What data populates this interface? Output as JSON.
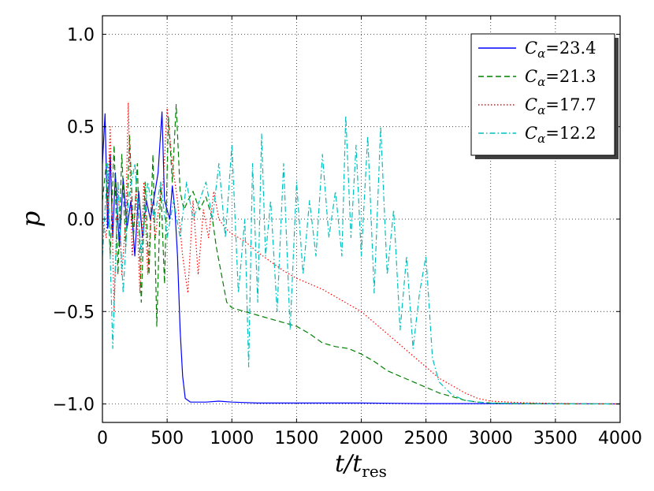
{
  "chart_data": {
    "type": "line",
    "title": "",
    "xlabel": "t/t_res",
    "xlabel_main": "t/t",
    "xlabel_sub": "res",
    "ylabel": "p",
    "xlim": [
      0,
      4000
    ],
    "ylim": [
      -1.1,
      1.1
    ],
    "xticks": [
      0,
      500,
      1000,
      1500,
      2000,
      2500,
      3000,
      3500,
      4000
    ],
    "yticks": [
      1.0,
      0.5,
      0.0,
      -0.5,
      -1.0
    ],
    "xtick_labels": [
      "0",
      "500",
      "1000",
      "1500",
      "2000",
      "2500",
      "3000",
      "3500",
      "4000"
    ],
    "ytick_labels": [
      "1.0",
      "0.5",
      "0.0",
      "−0.5",
      "−1.0"
    ],
    "grid": true,
    "legend_position": "top-right",
    "series": [
      {
        "name": "C_α = 23.4",
        "label_main": "C",
        "label_sub": "α",
        "label_value": "=23.4",
        "color": "#0000ff",
        "dash": "solid",
        "x": [
          0,
          20,
          40,
          60,
          80,
          100,
          130,
          160,
          190,
          220,
          250,
          280,
          310,
          340,
          370,
          400,
          430,
          460,
          480,
          500,
          520,
          540,
          560,
          580,
          600,
          620,
          640,
          660,
          680,
          700,
          750,
          800,
          900,
          1000,
          1200,
          1500,
          2000,
          2500,
          3000,
          3500,
          4000
        ],
        "values": [
          0.3,
          0.57,
          -0.05,
          0.35,
          -0.1,
          0.25,
          -0.15,
          0.22,
          -0.05,
          0.1,
          -0.2,
          0.15,
          -0.1,
          0.1,
          0.0,
          0.12,
          0.25,
          0.58,
          0.1,
          0.05,
          0.0,
          0.18,
          0.05,
          -0.2,
          -0.6,
          -0.85,
          -0.97,
          -0.98,
          -0.99,
          -0.99,
          -0.99,
          -0.99,
          -0.985,
          -0.99,
          -0.995,
          -0.995,
          -0.995,
          -0.998,
          -0.998,
          -0.999,
          -1.0
        ]
      },
      {
        "name": "C_α = 21.3",
        "label_main": "C",
        "label_sub": "α",
        "label_value": "=21.3",
        "color": "#008000",
        "dash": "dashed",
        "x": [
          0,
          30,
          60,
          90,
          120,
          150,
          180,
          210,
          240,
          270,
          300,
          330,
          360,
          390,
          420,
          450,
          480,
          510,
          540,
          570,
          600,
          630,
          660,
          700,
          750,
          800,
          850,
          880,
          920,
          960,
          1000,
          1100,
          1200,
          1300,
          1400,
          1500,
          1600,
          1700,
          1800,
          1900,
          2000,
          2100,
          2200,
          2300,
          2400,
          2500,
          2600,
          2700,
          2800,
          2900,
          3000,
          3100,
          3200,
          3400,
          3600,
          4000
        ],
        "values": [
          0.1,
          0.3,
          -0.2,
          0.4,
          -0.3,
          0.35,
          -0.15,
          0.45,
          -0.1,
          0.3,
          -0.45,
          0.2,
          -0.3,
          0.35,
          -0.58,
          0.2,
          -0.35,
          0.55,
          0.2,
          0.62,
          0.15,
          0.05,
          0.1,
          0.15,
          0.05,
          0.12,
          0.0,
          -0.15,
          -0.3,
          -0.45,
          -0.48,
          -0.5,
          -0.52,
          -0.54,
          -0.56,
          -0.58,
          -0.62,
          -0.67,
          -0.69,
          -0.7,
          -0.73,
          -0.77,
          -0.82,
          -0.85,
          -0.88,
          -0.91,
          -0.94,
          -0.96,
          -0.98,
          -0.99,
          -0.995,
          -0.997,
          -0.998,
          -0.999,
          -1.0,
          -1.0
        ]
      },
      {
        "name": "C_α = 17.7",
        "label_main": "C",
        "label_sub": "α",
        "label_value": "=17.7",
        "color": "#ff0000",
        "dash": "dotted",
        "x": [
          0,
          30,
          60,
          90,
          120,
          150,
          180,
          200,
          230,
          260,
          290,
          320,
          350,
          380,
          410,
          440,
          470,
          500,
          540,
          580,
          620,
          660,
          700,
          740,
          780,
          820,
          860,
          900,
          950,
          1000,
          1100,
          1200,
          1300,
          1400,
          1500,
          1600,
          1700,
          1800,
          1900,
          2000,
          2100,
          2200,
          2300,
          2400,
          2500,
          2600,
          2700,
          2800,
          2900,
          3000,
          3200,
          3400,
          3600,
          4000
        ],
        "values": [
          0.0,
          -0.1,
          0.5,
          -0.5,
          0.2,
          -0.3,
          0.0,
          0.63,
          -0.2,
          0.15,
          -0.4,
          0.2,
          -0.3,
          0.1,
          -0.1,
          0.1,
          0.2,
          0.6,
          0.3,
          0.1,
          -0.2,
          -0.4,
          0.1,
          -0.3,
          0.05,
          -0.1,
          0.15,
          0.0,
          -0.05,
          -0.08,
          -0.12,
          -0.18,
          -0.23,
          -0.28,
          -0.32,
          -0.35,
          -0.38,
          -0.42,
          -0.46,
          -0.5,
          -0.56,
          -0.62,
          -0.68,
          -0.74,
          -0.8,
          -0.86,
          -0.9,
          -0.94,
          -0.97,
          -0.985,
          -0.992,
          -0.996,
          -0.998,
          -1.0
        ]
      },
      {
        "name": "C_α = 12.2",
        "label_main": "C",
        "label_sub": "α",
        "label_value": "=12.2",
        "color": "#00bfbf",
        "dash": "dashdot",
        "x": [
          0,
          40,
          80,
          120,
          160,
          200,
          250,
          300,
          350,
          400,
          450,
          500,
          550,
          600,
          650,
          700,
          750,
          800,
          850,
          900,
          950,
          1000,
          1050,
          1100,
          1130,
          1160,
          1200,
          1230,
          1260,
          1300,
          1350,
          1400,
          1450,
          1500,
          1550,
          1600,
          1650,
          1700,
          1750,
          1800,
          1850,
          1880,
          1920,
          1960,
          2000,
          2050,
          2100,
          2150,
          2200,
          2250,
          2300,
          2350,
          2400,
          2450,
          2500,
          2550,
          2600,
          2700,
          2800,
          2900,
          3000,
          3200,
          3500,
          4000
        ],
        "values": [
          -0.2,
          0.3,
          -0.7,
          0.2,
          -0.4,
          0.1,
          0.3,
          -0.2,
          0.2,
          0.0,
          0.2,
          -0.1,
          0.1,
          -0.1,
          0.2,
          0.0,
          0.1,
          0.2,
          0.0,
          0.3,
          -0.1,
          0.4,
          -0.4,
          0.0,
          -0.8,
          0.3,
          -0.45,
          0.46,
          -0.2,
          0.1,
          -0.5,
          0.3,
          -0.6,
          0.2,
          -0.3,
          0.1,
          -0.2,
          0.35,
          -0.1,
          0.15,
          -0.2,
          0.56,
          -0.1,
          0.4,
          -0.2,
          0.45,
          -0.4,
          0.5,
          -0.3,
          0.05,
          -0.6,
          -0.2,
          -0.7,
          -0.4,
          -0.2,
          -0.75,
          -0.88,
          -0.95,
          -0.98,
          -0.99,
          -0.995,
          -0.997,
          -0.999,
          -1.0
        ]
      }
    ]
  }
}
